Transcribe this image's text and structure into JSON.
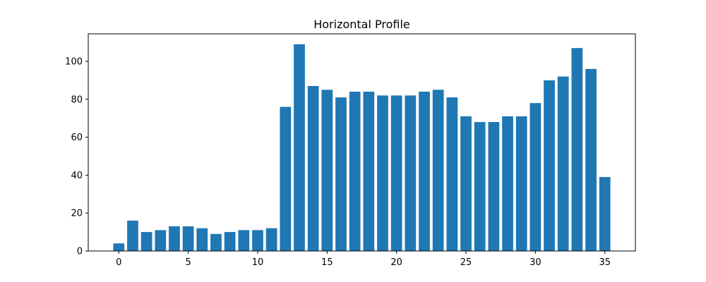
{
  "chart_data": {
    "type": "bar",
    "title": "Horizontal Profile",
    "xlabel": "",
    "ylabel": "",
    "x": [
      0,
      1,
      2,
      3,
      4,
      5,
      6,
      7,
      8,
      9,
      10,
      11,
      12,
      13,
      14,
      15,
      16,
      17,
      18,
      19,
      20,
      21,
      22,
      23,
      24,
      25,
      26,
      27,
      28,
      29,
      30,
      31,
      32,
      33,
      34,
      35
    ],
    "values": [
      4,
      16,
      10,
      11,
      13,
      13,
      12,
      9,
      10,
      11,
      11,
      12,
      76,
      109,
      87,
      85,
      81,
      84,
      84,
      82,
      82,
      82,
      84,
      85,
      81,
      71,
      68,
      68,
      71,
      71,
      78,
      90,
      92,
      107,
      96,
      39
    ],
    "xlim": [
      -2.2,
      37.2
    ],
    "ylim": [
      0,
      114.5
    ],
    "xticks": [
      0,
      5,
      10,
      15,
      20,
      25,
      30,
      35
    ],
    "yticks": [
      0,
      20,
      40,
      60,
      80,
      100
    ],
    "bar_color": "#1f77b4",
    "grid": false,
    "legend": "none"
  }
}
